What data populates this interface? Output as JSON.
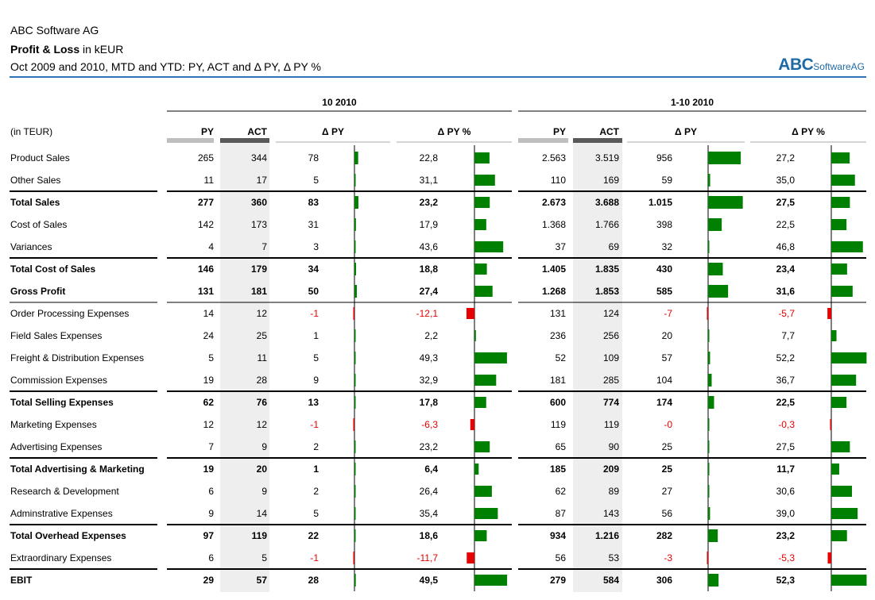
{
  "header": {
    "company": "ABC Software AG",
    "title_bold": "Profit & Loss",
    "title_rest": " in kEUR",
    "subtitle": "Oct 2009 and 2010, MTD and YTD: PY, ACT and Δ PY, Δ PY %",
    "brand_main": "ABC",
    "brand_sub": "SoftwareAG"
  },
  "colors": {
    "positive": "#008000",
    "negative": "#e60000",
    "act_shade": "#eeeeee",
    "py_bar": "#bfbfbf",
    "act_bar": "#595959",
    "accent": "#2e74b5"
  },
  "chart_data": {
    "type": "table",
    "unit_label": "(in TEUR)",
    "groups": [
      {
        "label": "10 2010",
        "columns": [
          "PY",
          "ACT",
          "Δ PY",
          "Δ PY %"
        ]
      },
      {
        "label": "1-10 2010",
        "columns": [
          "PY",
          "ACT",
          "Δ PY",
          "Δ PY %"
        ]
      }
    ],
    "rows": [
      {
        "label": "Product Sales",
        "bold": false,
        "mtd": {
          "py": "265",
          "act": "344",
          "dpy": "78",
          "dpy_pct": "22,8"
        },
        "ytd": {
          "py": "2.563",
          "act": "3.519",
          "dpy": "956",
          "dpy_pct": "27,2"
        }
      },
      {
        "label": "Other Sales",
        "bold": false,
        "mtd": {
          "py": "11",
          "act": "17",
          "dpy": "5",
          "dpy_pct": "31,1"
        },
        "ytd": {
          "py": "110",
          "act": "169",
          "dpy": "59",
          "dpy_pct": "35,0"
        }
      },
      {
        "label": "Total Sales",
        "bold": true,
        "mtd": {
          "py": "277",
          "act": "360",
          "dpy": "83",
          "dpy_pct": "23,2"
        },
        "ytd": {
          "py": "2.673",
          "act": "3.688",
          "dpy": "1.015",
          "dpy_pct": "27,5"
        }
      },
      {
        "label": "Cost of Sales",
        "bold": false,
        "mtd": {
          "py": "142",
          "act": "173",
          "dpy": "31",
          "dpy_pct": "17,9"
        },
        "ytd": {
          "py": "1.368",
          "act": "1.766",
          "dpy": "398",
          "dpy_pct": "22,5"
        }
      },
      {
        "label": "Variances",
        "bold": false,
        "mtd": {
          "py": "4",
          "act": "7",
          "dpy": "3",
          "dpy_pct": "43,6"
        },
        "ytd": {
          "py": "37",
          "act": "69",
          "dpy": "32",
          "dpy_pct": "46,8"
        }
      },
      {
        "label": "Total Cost of Sales",
        "bold": true,
        "mtd": {
          "py": "146",
          "act": "179",
          "dpy": "34",
          "dpy_pct": "18,8"
        },
        "ytd": {
          "py": "1.405",
          "act": "1.835",
          "dpy": "430",
          "dpy_pct": "23,4"
        }
      },
      {
        "label": "Gross Profit",
        "bold": true,
        "mtd": {
          "py": "131",
          "act": "181",
          "dpy": "50",
          "dpy_pct": "27,4"
        },
        "ytd": {
          "py": "1.268",
          "act": "1.853",
          "dpy": "585",
          "dpy_pct": "31,6"
        }
      },
      {
        "label": "Order Processing Expenses",
        "bold": false,
        "mtd": {
          "py": "14",
          "act": "12",
          "dpy": "-1",
          "dpy_pct": "-12,1"
        },
        "ytd": {
          "py": "131",
          "act": "124",
          "dpy": "-7",
          "dpy_pct": "-5,7"
        }
      },
      {
        "label": "Field Sales Expenses",
        "bold": false,
        "mtd": {
          "py": "24",
          "act": "25",
          "dpy": "1",
          "dpy_pct": "2,2"
        },
        "ytd": {
          "py": "236",
          "act": "256",
          "dpy": "20",
          "dpy_pct": "7,7"
        }
      },
      {
        "label": "Freight & Distribution Expenses",
        "bold": false,
        "mtd": {
          "py": "5",
          "act": "11",
          "dpy": "5",
          "dpy_pct": "49,3"
        },
        "ytd": {
          "py": "52",
          "act": "109",
          "dpy": "57",
          "dpy_pct": "52,2"
        }
      },
      {
        "label": "Commission Expenses",
        "bold": false,
        "mtd": {
          "py": "19",
          "act": "28",
          "dpy": "9",
          "dpy_pct": "32,9"
        },
        "ytd": {
          "py": "181",
          "act": "285",
          "dpy": "104",
          "dpy_pct": "36,7"
        }
      },
      {
        "label": "Total Selling Expenses",
        "bold": true,
        "mtd": {
          "py": "62",
          "act": "76",
          "dpy": "13",
          "dpy_pct": "17,8"
        },
        "ytd": {
          "py": "600",
          "act": "774",
          "dpy": "174",
          "dpy_pct": "22,5"
        }
      },
      {
        "label": "Marketing Expenses",
        "bold": false,
        "mtd": {
          "py": "12",
          "act": "12",
          "dpy": "-1",
          "dpy_pct": "-6,3"
        },
        "ytd": {
          "py": "119",
          "act": "119",
          "dpy": "-0",
          "dpy_pct": "-0,3"
        }
      },
      {
        "label": "Advertising Expenses",
        "bold": false,
        "mtd": {
          "py": "7",
          "act": "9",
          "dpy": "2",
          "dpy_pct": "23,2"
        },
        "ytd": {
          "py": "65",
          "act": "90",
          "dpy": "25",
          "dpy_pct": "27,5"
        }
      },
      {
        "label": "Total Advertising & Marketing",
        "bold": true,
        "mtd": {
          "py": "19",
          "act": "20",
          "dpy": "1",
          "dpy_pct": "6,4"
        },
        "ytd": {
          "py": "185",
          "act": "209",
          "dpy": "25",
          "dpy_pct": "11,7"
        }
      },
      {
        "label": "Research & Development",
        "bold": false,
        "mtd": {
          "py": "6",
          "act": "9",
          "dpy": "2",
          "dpy_pct": "26,4"
        },
        "ytd": {
          "py": "62",
          "act": "89",
          "dpy": "27",
          "dpy_pct": "30,6"
        }
      },
      {
        "label": "Adminstrative Expenses",
        "bold": false,
        "mtd": {
          "py": "9",
          "act": "14",
          "dpy": "5",
          "dpy_pct": "35,4"
        },
        "ytd": {
          "py": "87",
          "act": "143",
          "dpy": "56",
          "dpy_pct": "39,0"
        }
      },
      {
        "label": "Total Overhead Expenses",
        "bold": true,
        "mtd": {
          "py": "97",
          "act": "119",
          "dpy": "22",
          "dpy_pct": "18,6"
        },
        "ytd": {
          "py": "934",
          "act": "1.216",
          "dpy": "282",
          "dpy_pct": "23,2"
        }
      },
      {
        "label": "Extraordinary Expenses",
        "bold": false,
        "mtd": {
          "py": "6",
          "act": "5",
          "dpy": "-1",
          "dpy_pct": "-11,7"
        },
        "ytd": {
          "py": "56",
          "act": "53",
          "dpy": "-3",
          "dpy_pct": "-5,3"
        }
      },
      {
        "label": "EBIT",
        "bold": true,
        "mtd": {
          "py": "29",
          "act": "57",
          "dpy": "28",
          "dpy_pct": "49,5"
        },
        "ytd": {
          "py": "279",
          "act": "584",
          "dpy": "306",
          "dpy_pct": "52,3"
        }
      }
    ]
  }
}
